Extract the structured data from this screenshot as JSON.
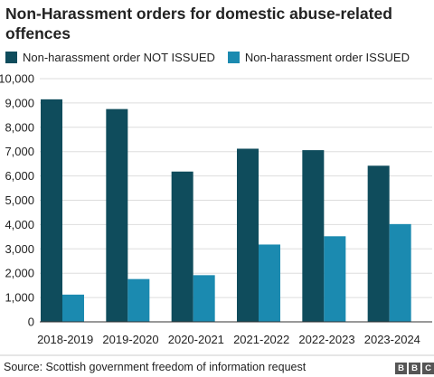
{
  "chart_data": {
    "type": "bar",
    "title": "Non-Harassment orders for domestic abuse-related offences",
    "categories": [
      "2018-2019",
      "2019-2020",
      "2020-2021",
      "2021-2022",
      "2022-2023",
      "2023-2024"
    ],
    "series": [
      {
        "name": "Non-harassment order NOT ISSUED",
        "color": "#0f4c5c",
        "values": [
          9150,
          8750,
          6180,
          7120,
          7060,
          6420
        ]
      },
      {
        "name": "Non-harassment order ISSUED",
        "color": "#1b8ab0",
        "values": [
          1120,
          1760,
          1920,
          3180,
          3520,
          4020
        ]
      }
    ],
    "ylim": [
      0,
      10000
    ],
    "yticks": [
      "0",
      "1,000",
      "2,000",
      "3,000",
      "4,000",
      "5,000",
      "6,000",
      "7,000",
      "8,000",
      "9,000",
      "10,000"
    ],
    "ytick_values": [
      0,
      1000,
      2000,
      3000,
      4000,
      5000,
      6000,
      7000,
      8000,
      9000,
      10000
    ],
    "grid": true,
    "legend": "top-left",
    "source": "Source: Scottish government freedom of information request"
  },
  "logo": {
    "letters": [
      "B",
      "B",
      "C"
    ]
  }
}
